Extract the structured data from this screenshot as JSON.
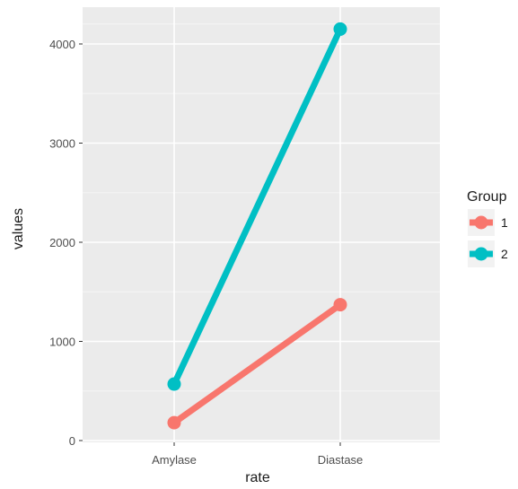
{
  "chart_data": {
    "type": "line",
    "categories": [
      "Amylase",
      "Diastase"
    ],
    "series": [
      {
        "name": "1",
        "values": [
          180,
          1370
        ],
        "color": "#F8766D"
      },
      {
        "name": "2",
        "values": [
          570,
          4150
        ],
        "color": "#00BFC4"
      }
    ],
    "xlabel": "rate",
    "ylabel": "values",
    "ylim": [
      0,
      4200
    ],
    "yticks": [
      0,
      1000,
      2000,
      3000,
      4000
    ],
    "grid": true,
    "panel_background": "#EBEBEB",
    "legend": {
      "title": "Group",
      "placement": "right"
    }
  }
}
